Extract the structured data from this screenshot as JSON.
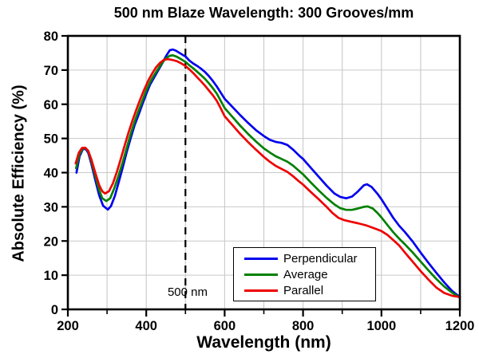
{
  "title": "500 nm Blaze Wavelength: 300 Grooves/mm",
  "colors": {
    "background": "#ffffff",
    "frame": "#000000",
    "grid": "#c9c9c9",
    "tick": "#000000",
    "annotation_line": "#000000"
  },
  "chart_data": {
    "type": "line",
    "title": "500 nm Blaze Wavelength: 300 Grooves/mm",
    "xlabel": "Wavelength (nm)",
    "ylabel": "Absolute Efficiency (%)",
    "xlim": [
      200,
      1200
    ],
    "ylim": [
      0,
      80
    ],
    "x_major_ticks": [
      200,
      400,
      600,
      800,
      1000,
      1200
    ],
    "x_minor_ticks": [
      300,
      500,
      700,
      900,
      1100
    ],
    "y_major_ticks": [
      0,
      10,
      20,
      30,
      40,
      50,
      60,
      70,
      80
    ],
    "x_gridlines": [
      300,
      400,
      500,
      600,
      700,
      800,
      900,
      1000,
      1100
    ],
    "y_gridlines": [
      10,
      20,
      30,
      40,
      50,
      60,
      70
    ],
    "grid": "on",
    "legend_position": "inside lower right",
    "annotation": {
      "label": "500 nm",
      "x": 500,
      "style": "vertical dashed line from top to bottom at 500 nm"
    },
    "series": [
      {
        "name": "Perpendicular",
        "color": "#0000ee",
        "points": [
          [
            222,
            40.0
          ],
          [
            230,
            44.8
          ],
          [
            238,
            46.8
          ],
          [
            245,
            47.0
          ],
          [
            252,
            45.8
          ],
          [
            260,
            42.5
          ],
          [
            270,
            37.8
          ],
          [
            280,
            33.3
          ],
          [
            290,
            30.3
          ],
          [
            302,
            29.2
          ],
          [
            310,
            30.2
          ],
          [
            320,
            33.2
          ],
          [
            330,
            37.3
          ],
          [
            340,
            41.5
          ],
          [
            350,
            46.0
          ],
          [
            360,
            50.0
          ],
          [
            370,
            53.8
          ],
          [
            380,
            56.8
          ],
          [
            390,
            60.0
          ],
          [
            400,
            63.0
          ],
          [
            410,
            65.8
          ],
          [
            420,
            67.8
          ],
          [
            430,
            69.8
          ],
          [
            440,
            71.8
          ],
          [
            450,
            74.0
          ],
          [
            460,
            75.8
          ],
          [
            468,
            76.0
          ],
          [
            475,
            75.7
          ],
          [
            485,
            75.0
          ],
          [
            495,
            74.3
          ],
          [
            500,
            74.0
          ],
          [
            510,
            72.8
          ],
          [
            520,
            71.9
          ],
          [
            530,
            71.2
          ],
          [
            540,
            70.4
          ],
          [
            550,
            69.4
          ],
          [
            560,
            68.2
          ],
          [
            570,
            66.8
          ],
          [
            580,
            65.2
          ],
          [
            590,
            63.4
          ],
          [
            600,
            61.6
          ],
          [
            620,
            59.2
          ],
          [
            640,
            56.8
          ],
          [
            660,
            54.5
          ],
          [
            680,
            52.4
          ],
          [
            700,
            50.7
          ],
          [
            715,
            49.6
          ],
          [
            730,
            49.0
          ],
          [
            745,
            48.7
          ],
          [
            760,
            48.1
          ],
          [
            775,
            46.7
          ],
          [
            790,
            45.0
          ],
          [
            800,
            44.0
          ],
          [
            820,
            41.4
          ],
          [
            840,
            38.8
          ],
          [
            860,
            36.2
          ],
          [
            880,
            33.9
          ],
          [
            895,
            32.9
          ],
          [
            910,
            32.5
          ],
          [
            925,
            33.0
          ],
          [
            940,
            34.5
          ],
          [
            955,
            36.3
          ],
          [
            963,
            36.6
          ],
          [
            975,
            35.8
          ],
          [
            990,
            33.8
          ],
          [
            1000,
            32.2
          ],
          [
            1015,
            29.5
          ],
          [
            1030,
            26.8
          ],
          [
            1045,
            24.5
          ],
          [
            1060,
            22.6
          ],
          [
            1080,
            19.8
          ],
          [
            1100,
            16.6
          ],
          [
            1120,
            13.6
          ],
          [
            1140,
            10.7
          ],
          [
            1160,
            7.9
          ],
          [
            1180,
            5.4
          ],
          [
            1200,
            3.6
          ]
        ]
      },
      {
        "name": "Average",
        "color": "#008000",
        "points": [
          [
            221,
            41.3
          ],
          [
            230,
            45.5
          ],
          [
            238,
            47.0
          ],
          [
            245,
            47.2
          ],
          [
            252,
            46.2
          ],
          [
            260,
            43.2
          ],
          [
            270,
            38.9
          ],
          [
            280,
            34.8
          ],
          [
            288,
            32.5
          ],
          [
            298,
            31.7
          ],
          [
            308,
            32.5
          ],
          [
            318,
            35.3
          ],
          [
            328,
            38.6
          ],
          [
            340,
            43.0
          ],
          [
            350,
            47.2
          ],
          [
            360,
            51.2
          ],
          [
            370,
            54.8
          ],
          [
            380,
            58.0
          ],
          [
            390,
            61.0
          ],
          [
            400,
            64.0
          ],
          [
            410,
            66.5
          ],
          [
            420,
            68.5
          ],
          [
            430,
            70.3
          ],
          [
            440,
            72.0
          ],
          [
            450,
            73.4
          ],
          [
            460,
            74.2
          ],
          [
            468,
            74.3
          ],
          [
            478,
            73.9
          ],
          [
            490,
            73.1
          ],
          [
            500,
            72.4
          ],
          [
            510,
            71.4
          ],
          [
            520,
            70.5
          ],
          [
            530,
            69.5
          ],
          [
            540,
            68.5
          ],
          [
            550,
            67.4
          ],
          [
            560,
            66.1
          ],
          [
            570,
            64.7
          ],
          [
            580,
            63.1
          ],
          [
            590,
            61.0
          ],
          [
            600,
            58.9
          ],
          [
            620,
            56.3
          ],
          [
            640,
            53.7
          ],
          [
            660,
            51.3
          ],
          [
            680,
            49.1
          ],
          [
            700,
            47.1
          ],
          [
            715,
            45.9
          ],
          [
            730,
            44.8
          ],
          [
            745,
            44.0
          ],
          [
            760,
            43.2
          ],
          [
            775,
            42.0
          ],
          [
            790,
            40.5
          ],
          [
            800,
            39.5
          ],
          [
            820,
            37.1
          ],
          [
            840,
            34.8
          ],
          [
            860,
            32.6
          ],
          [
            880,
            30.7
          ],
          [
            895,
            29.6
          ],
          [
            910,
            29.1
          ],
          [
            925,
            29.1
          ],
          [
            940,
            29.5
          ],
          [
            955,
            30.0
          ],
          [
            965,
            30.1
          ],
          [
            978,
            29.5
          ],
          [
            990,
            28.2
          ],
          [
            1000,
            26.9
          ],
          [
            1015,
            24.7
          ],
          [
            1030,
            22.6
          ],
          [
            1045,
            20.7
          ],
          [
            1060,
            19.0
          ],
          [
            1080,
            16.6
          ],
          [
            1100,
            14.0
          ],
          [
            1120,
            11.4
          ],
          [
            1140,
            8.9
          ],
          [
            1160,
            6.7
          ],
          [
            1180,
            4.9
          ],
          [
            1200,
            3.4
          ]
        ]
      },
      {
        "name": "Parallel",
        "color": "#ee0000",
        "points": [
          [
            220,
            42.7
          ],
          [
            228,
            45.8
          ],
          [
            236,
            47.2
          ],
          [
            244,
            47.3
          ],
          [
            252,
            46.4
          ],
          [
            260,
            43.8
          ],
          [
            270,
            39.9
          ],
          [
            280,
            36.3
          ],
          [
            288,
            34.5
          ],
          [
            295,
            33.9
          ],
          [
            305,
            34.6
          ],
          [
            315,
            36.9
          ],
          [
            325,
            40.2
          ],
          [
            335,
            44.0
          ],
          [
            345,
            48.0
          ],
          [
            355,
            51.8
          ],
          [
            365,
            55.3
          ],
          [
            375,
            58.5
          ],
          [
            385,
            61.5
          ],
          [
            395,
            64.3
          ],
          [
            405,
            66.9
          ],
          [
            415,
            69.0
          ],
          [
            425,
            70.8
          ],
          [
            435,
            72.1
          ],
          [
            445,
            73.0
          ],
          [
            455,
            73.2
          ],
          [
            465,
            73.0
          ],
          [
            478,
            72.6
          ],
          [
            490,
            71.9
          ],
          [
            500,
            71.2
          ],
          [
            510,
            70.2
          ],
          [
            520,
            69.1
          ],
          [
            530,
            67.9
          ],
          [
            540,
            66.7
          ],
          [
            550,
            65.4
          ],
          [
            560,
            64.0
          ],
          [
            570,
            62.6
          ],
          [
            580,
            61.0
          ],
          [
            590,
            58.8
          ],
          [
            600,
            56.5
          ],
          [
            620,
            53.9
          ],
          [
            640,
            51.3
          ],
          [
            660,
            48.9
          ],
          [
            680,
            46.7
          ],
          [
            700,
            44.6
          ],
          [
            715,
            43.2
          ],
          [
            730,
            42.0
          ],
          [
            745,
            41.1
          ],
          [
            760,
            40.2
          ],
          [
            775,
            38.9
          ],
          [
            790,
            37.4
          ],
          [
            800,
            36.5
          ],
          [
            820,
            34.3
          ],
          [
            840,
            32.2
          ],
          [
            860,
            30.0
          ],
          [
            875,
            28.2
          ],
          [
            890,
            26.8
          ],
          [
            905,
            26.1
          ],
          [
            920,
            25.7
          ],
          [
            940,
            25.2
          ],
          [
            960,
            24.6
          ],
          [
            980,
            23.8
          ],
          [
            1000,
            22.9
          ],
          [
            1015,
            21.8
          ],
          [
            1030,
            20.3
          ],
          [
            1045,
            18.7
          ],
          [
            1060,
            16.6
          ],
          [
            1080,
            13.9
          ],
          [
            1100,
            11.2
          ],
          [
            1120,
            8.7
          ],
          [
            1140,
            6.4
          ],
          [
            1160,
            4.8
          ],
          [
            1180,
            4.0
          ],
          [
            1200,
            3.6
          ]
        ]
      }
    ]
  },
  "legend": {
    "entries": [
      "Perpendicular",
      "Average",
      "Parallel"
    ]
  }
}
